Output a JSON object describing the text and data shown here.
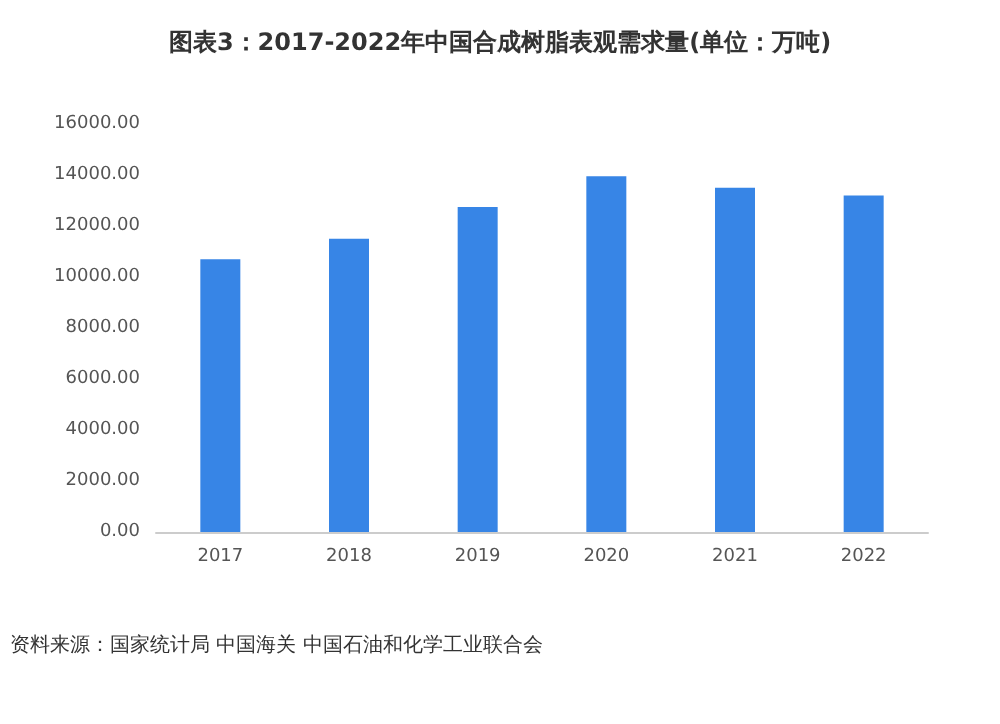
{
  "chart_data": {
    "type": "bar",
    "title": "图表3：2017-2022年中国合成树脂表观需求量(单位：万吨)",
    "categories": [
      "2017",
      "2018",
      "2019",
      "2020",
      "2021",
      "2022"
    ],
    "values": [
      10700,
      11500,
      12750,
      13950,
      13500,
      13200
    ],
    "color": "#3785e6",
    "ylim": [
      0,
      16000
    ],
    "yticks": [
      {
        "value": 0,
        "label": "0.00"
      },
      {
        "value": 2000,
        "label": "2000.00"
      },
      {
        "value": 4000,
        "label": "4000.00"
      },
      {
        "value": 6000,
        "label": "6000.00"
      },
      {
        "value": 8000,
        "label": "8000.00"
      },
      {
        "value": 10000,
        "label": "10000.00"
      },
      {
        "value": 12000,
        "label": "12000.00"
      },
      {
        "value": 14000,
        "label": "14000.00"
      },
      {
        "value": 16000,
        "label": "16000.00"
      }
    ],
    "grid": false,
    "annotations": [
      "资料来源：国家统计局 中国海关 中国石油和化学工业联合会"
    ]
  }
}
